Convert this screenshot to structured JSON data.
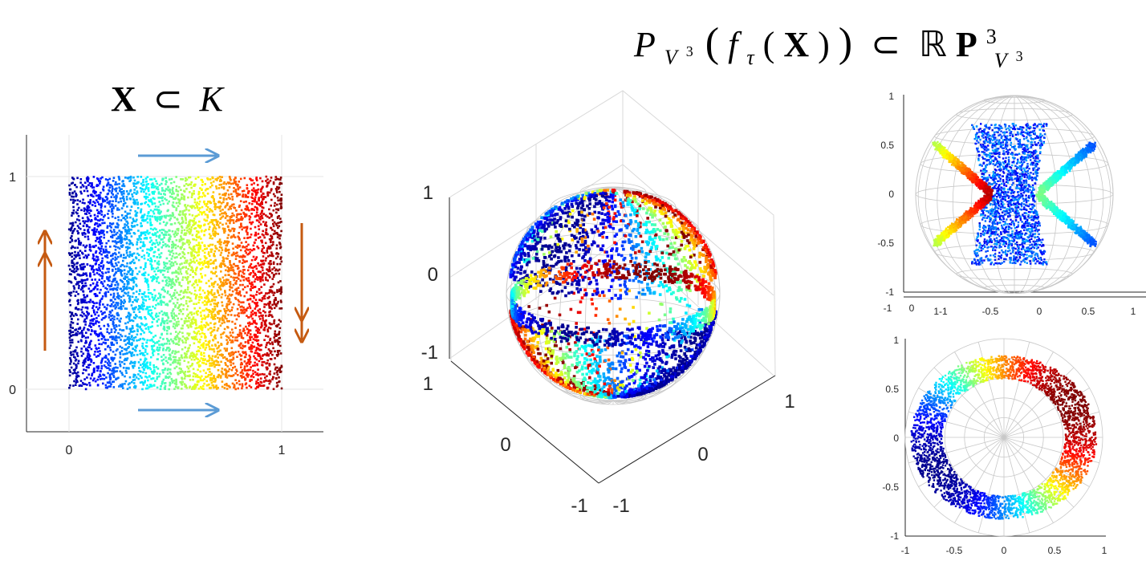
{
  "titles": {
    "left": {
      "bold": "X",
      "rel": "⊂",
      "italic": "K"
    },
    "right": {
      "p": "P",
      "p_sub": "V",
      "p_sub_sup": "3",
      "open": "(",
      "f": "f",
      "f_sub": "τ",
      "arg_open": "(",
      "arg": "X",
      "arg_close": ")",
      "close": ")",
      "rel": "⊂",
      "rp": "ℝ",
      "rp_bold": "P",
      "rp_sup": "3",
      "rp_sub": "V",
      "rp_sub_sup": "3"
    }
  },
  "chart_data": [
    {
      "type": "scatter",
      "panel": "left",
      "xlim": [
        0,
        1
      ],
      "ylim": [
        0,
        1
      ],
      "xticks": [
        "0",
        "1"
      ],
      "yticks": [
        "0",
        "1"
      ],
      "grid": true,
      "color_encoding": "x coordinate (jet colormap)",
      "points": "uniform random sample over unit square",
      "annotations": {
        "top_arrow": "right",
        "bottom_arrow": "right",
        "left_arrow": "up (double)",
        "right_arrow": "down (double)",
        "arrow_colors": {
          "horizontal": "#5b9bd5",
          "vertical": "#c55a11"
        }
      }
    },
    {
      "type": "scatter",
      "panel": "middle-3d",
      "view": "3d perspective on unit sphere",
      "xlim": [
        -1,
        1
      ],
      "ylim": [
        -1,
        1
      ],
      "zlim": [
        -1,
        1
      ],
      "xticks": [
        "-1",
        "0",
        "1"
      ],
      "yticks": [
        "-1",
        "0",
        "1"
      ],
      "zticks": [
        "-1",
        "0",
        "1"
      ],
      "grid": true
    },
    {
      "type": "scatter",
      "panel": "top-right",
      "view": "side projection on unit sphere",
      "xlim": [
        -1,
        1
      ],
      "ylim": [
        -1,
        1
      ],
      "yticks": [
        "1",
        "0.5",
        "0",
        "-0.5",
        "-1"
      ],
      "xticks_outer": [
        "-1",
        "0",
        "1"
      ],
      "xticks_inner": [
        "1-1",
        "-0.5",
        "0",
        "0.5",
        "1"
      ]
    },
    {
      "type": "scatter",
      "panel": "bottom-right",
      "view": "top projection on unit sphere",
      "xlim": [
        -1,
        1
      ],
      "ylim": [
        -1,
        1
      ],
      "xticks": [
        "-1",
        "-0.5",
        "0",
        "0.5",
        "1"
      ],
      "yticks": [
        "1",
        "0.5",
        "0",
        "-0.5",
        "-1"
      ]
    }
  ],
  "colors": {
    "jet": [
      "#00008f",
      "#0000ff",
      "#0080ff",
      "#00ffff",
      "#80ff80",
      "#ffff00",
      "#ff8000",
      "#ff0000",
      "#800000"
    ],
    "axis": "#262626",
    "grid": "#d9d9d9",
    "sphere": "#c8c8c8"
  }
}
